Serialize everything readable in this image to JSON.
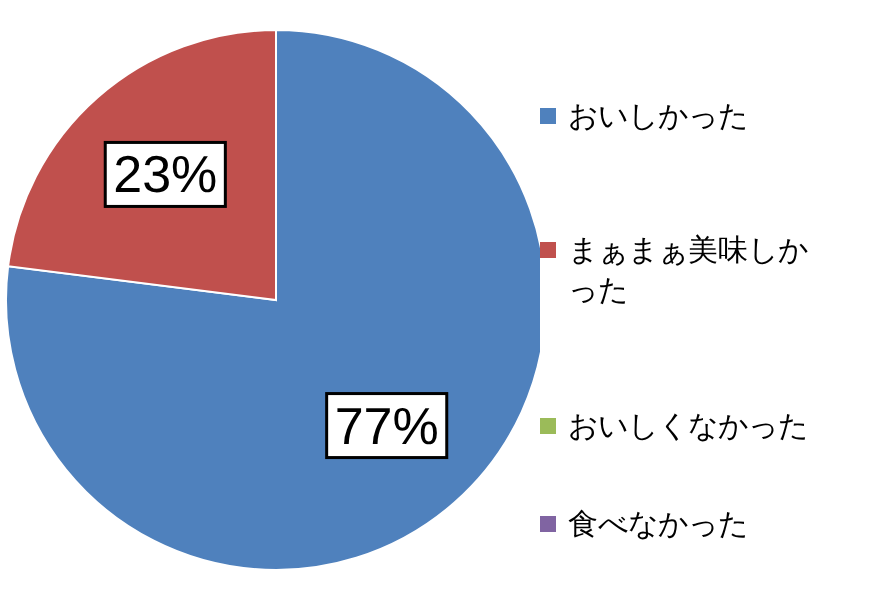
{
  "chart_data": {
    "type": "pie",
    "categories": [
      "おいしかった",
      "まぁまぁ美味しかった",
      "おいしくなかった",
      "食べなかった"
    ],
    "values": [
      77,
      23,
      0,
      0
    ],
    "colors": [
      "#4f81bd",
      "#c0504d",
      "#9bbb59",
      "#8064a2"
    ],
    "value_labels": [
      "77%",
      "23%",
      null,
      null
    ],
    "legend": "right"
  }
}
